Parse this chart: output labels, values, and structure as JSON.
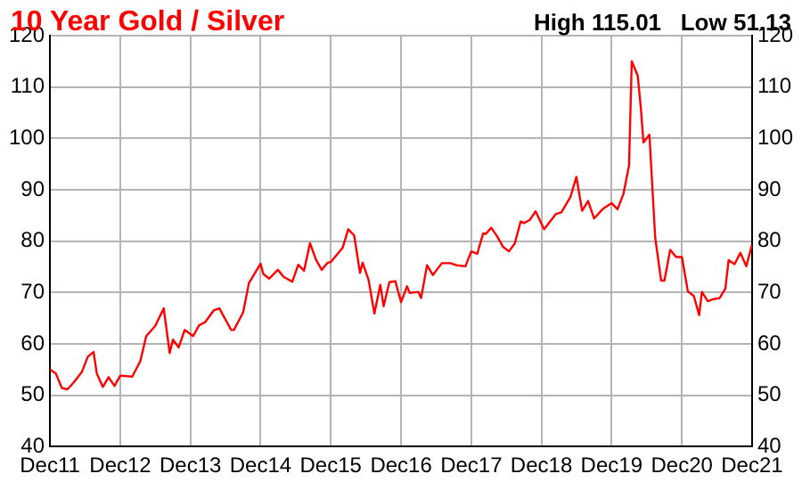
{
  "chart_data": {
    "type": "line",
    "title": "10 Year Gold / Silver",
    "annotations": [
      "High 115.01   Low 51.13"
    ],
    "x": [
      "2011-12-01",
      "2012-01-01",
      "2012-02-01",
      "2012-03-01",
      "2012-04-01",
      "2012-05-15",
      "2012-06-15",
      "2012-07-15",
      "2012-08-01",
      "2012-09-01",
      "2012-10-01",
      "2012-11-01",
      "2012-12-01",
      "2013-02-01",
      "2013-03-15",
      "2013-04-15",
      "2013-06-01",
      "2013-07-15",
      "2013-08-15",
      "2013-09-01",
      "2013-10-01",
      "2013-11-01",
      "2013-12-15",
      "2014-01-15",
      "2014-02-15",
      "2014-04-01",
      "2014-05-01",
      "2014-05-15",
      "2014-07-01",
      "2014-07-15",
      "2014-09-01",
      "2014-10-01",
      "2014-12-01",
      "2014-12-15",
      "2015-01-15",
      "2015-03-01",
      "2015-04-01",
      "2015-05-15",
      "2015-06-15",
      "2015-07-15",
      "2015-08-15",
      "2015-09-15",
      "2015-10-15",
      "2015-11-15",
      "2015-12-01",
      "2016-02-01",
      "2016-03-01",
      "2016-04-01",
      "2016-05-01",
      "2016-05-15",
      "2016-06-15",
      "2016-07-15",
      "2016-08-15",
      "2016-09-01",
      "2016-10-01",
      "2016-11-01",
      "2016-12-01",
      "2017-01-01",
      "2017-01-15",
      "2017-03-01",
      "2017-03-15",
      "2017-04-15",
      "2017-05-15",
      "2017-07-01",
      "2017-08-15",
      "2017-09-15",
      "2017-11-01",
      "2017-12-01",
      "2018-01-01",
      "2018-02-01",
      "2018-02-15",
      "2018-03-15",
      "2018-04-15",
      "2018-05-15",
      "2018-06-15",
      "2018-07-15",
      "2018-08-15",
      "2018-09-01",
      "2018-10-01",
      "2018-11-01",
      "2018-12-15",
      "2019-02-15",
      "2019-03-15",
      "2019-05-01",
      "2019-06-01",
      "2019-07-01",
      "2019-08-01",
      "2019-09-01",
      "2019-10-15",
      "2019-12-01",
      "2020-01-01",
      "2020-02-01",
      "2020-03-01",
      "2020-03-15",
      "2020-04-15",
      "2020-05-01",
      "2020-05-15",
      "2020-06-15",
      "2020-07-15",
      "2020-08-15",
      "2020-09-01",
      "2020-10-01",
      "2020-11-01",
      "2020-12-01",
      "2021-01-01",
      "2021-02-01",
      "2021-03-01",
      "2021-03-15",
      "2021-04-15",
      "2021-05-15",
      "2021-06-15",
      "2021-07-15",
      "2021-08-01",
      "2021-09-01",
      "2021-10-01",
      "2021-11-01",
      "2021-12-01"
    ],
    "series": [
      {
        "color": "#ff0000",
        "values": [
          55.0,
          54.2,
          51.4,
          51.13,
          52.4,
          54.5,
          57.5,
          58.4,
          54.2,
          51.6,
          53.5,
          51.8,
          53.8,
          53.6,
          56.6,
          61.5,
          63.5,
          66.9,
          58.2,
          60.8,
          59.3,
          62.7,
          61.5,
          63.6,
          64.2,
          66.5,
          66.9,
          65.9,
          62.7,
          62.7,
          66.1,
          71.8,
          75.6,
          73.6,
          72.7,
          74.4,
          73.0,
          72.1,
          75.4,
          74.2,
          79.6,
          76.4,
          74.4,
          75.8,
          75.9,
          78.7,
          82.3,
          81.1,
          73.8,
          75.8,
          72.4,
          65.9,
          71.5,
          67.3,
          72.0,
          72.2,
          68.1,
          71.2,
          69.9,
          70.1,
          68.9,
          75.3,
          73.4,
          75.7,
          75.7,
          75.3,
          75.1,
          78.0,
          77.5,
          81.5,
          81.4,
          82.6,
          80.9,
          78.9,
          78.0,
          79.5,
          83.8,
          83.5,
          84.1,
          85.8,
          82.3,
          85.3,
          85.6,
          88.6,
          92.5,
          85.9,
          87.8,
          84.4,
          86.2,
          87.4,
          86.2,
          89.2,
          94.7,
          115.01,
          112.2,
          106.1,
          99.2,
          100.7,
          80.7,
          72.3,
          72.3,
          78.3,
          76.9,
          76.9,
          70.2,
          69.3,
          65.6,
          70.1,
          68.3,
          68.7,
          68.9,
          70.7,
          76.3,
          75.5,
          77.7,
          75.1,
          79.3
        ]
      }
    ],
    "xlim": [
      "2011-12-01",
      "2021-12-01"
    ],
    "xticks": [
      {
        "value": "2011-12-01",
        "label": "Dec11"
      },
      {
        "value": "2012-12-01",
        "label": "Dec12"
      },
      {
        "value": "2013-12-01",
        "label": "Dec13"
      },
      {
        "value": "2014-12-01",
        "label": "Dec14"
      },
      {
        "value": "2015-12-01",
        "label": "Dec15"
      },
      {
        "value": "2016-12-01",
        "label": "Dec16"
      },
      {
        "value": "2017-12-01",
        "label": "Dec17"
      },
      {
        "value": "2018-12-01",
        "label": "Dec18"
      },
      {
        "value": "2019-12-01",
        "label": "Dec19"
      },
      {
        "value": "2020-12-01",
        "label": "Dec20"
      },
      {
        "value": "2021-12-01",
        "label": "Dec21"
      }
    ],
    "ylim": [
      40,
      120
    ],
    "yticks": [
      40,
      50,
      60,
      70,
      80,
      90,
      100,
      110,
      120
    ],
    "y2lim": [
      40,
      120
    ],
    "y2ticks": [
      40,
      50,
      60,
      70,
      80,
      90,
      100,
      110,
      120
    ],
    "grid": true,
    "legend": false,
    "marker": "none",
    "line_style": "solid"
  }
}
